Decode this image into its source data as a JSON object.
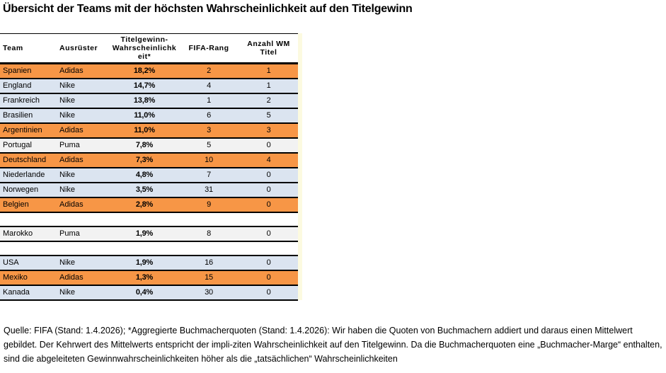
{
  "title": "Übersicht der Teams mit der höchsten Wahrscheinlichkeit auf den Titelgewinn",
  "table": {
    "columns": [
      "Team",
      "Ausrüster",
      "Titelgewinn-Wahrscheinlichkeit*",
      "FIFA-Rang",
      "Anzahl WM Titel"
    ],
    "rows": [
      {
        "team": "Spanien",
        "ausruester": "Adidas",
        "wahrscheinlichkeit": "18,2%",
        "fifa_rang": "2",
        "wm_titel": "1",
        "highlight": "orange"
      },
      {
        "team": "England",
        "ausruester": "Nike",
        "wahrscheinlichkeit": "14,7%",
        "fifa_rang": "4",
        "wm_titel": "1",
        "highlight": "blue"
      },
      {
        "team": "Frankreich",
        "ausruester": "Nike",
        "wahrscheinlichkeit": "13,8%",
        "fifa_rang": "1",
        "wm_titel": "2",
        "highlight": "blue"
      },
      {
        "team": "Brasilien",
        "ausruester": "Nike",
        "wahrscheinlichkeit": "11,0%",
        "fifa_rang": "6",
        "wm_titel": "5",
        "highlight": "blue"
      },
      {
        "team": "Argentinien",
        "ausruester": "Adidas",
        "wahrscheinlichkeit": "11,0%",
        "fifa_rang": "3",
        "wm_titel": "3",
        "highlight": "orange"
      },
      {
        "team": "Portugal",
        "ausruester": "Puma",
        "wahrscheinlichkeit": "7,8%",
        "fifa_rang": "5",
        "wm_titel": "0",
        "highlight": "gray"
      },
      {
        "team": "Deutschland",
        "ausruester": "Adidas",
        "wahrscheinlichkeit": "7,3%",
        "fifa_rang": "10",
        "wm_titel": "4",
        "highlight": "orange"
      },
      {
        "team": "Niederlande",
        "ausruester": "Nike",
        "wahrscheinlichkeit": "4,8%",
        "fifa_rang": "7",
        "wm_titel": "0",
        "highlight": "blue"
      },
      {
        "team": "Norwegen",
        "ausruester": "Nike",
        "wahrscheinlichkeit": "3,5%",
        "fifa_rang": "31",
        "wm_titel": "0",
        "highlight": "blue"
      },
      {
        "team": "Belgien",
        "ausruester": "Adidas",
        "wahrscheinlichkeit": "2,8%",
        "fifa_rang": "9",
        "wm_titel": "0",
        "highlight": "orange"
      },
      {
        "spacer": true
      },
      {
        "team": "Marokko",
        "ausruester": "Puma",
        "wahrscheinlichkeit": "1,9%",
        "fifa_rang": "8",
        "wm_titel": "0",
        "highlight": "gray"
      },
      {
        "spacer": true
      },
      {
        "team": "USA",
        "ausruester": "Nike",
        "wahrscheinlichkeit": "1,9%",
        "fifa_rang": "16",
        "wm_titel": "0",
        "highlight": "blue"
      },
      {
        "team": "Mexiko",
        "ausruester": "Adidas",
        "wahrscheinlichkeit": "1,3%",
        "fifa_rang": "15",
        "wm_titel": "0",
        "highlight": "orange"
      },
      {
        "team": "Kanada",
        "ausruester": "Nike",
        "wahrscheinlichkeit": "0,4%",
        "fifa_rang": "30",
        "wm_titel": "0",
        "highlight": "blue"
      }
    ]
  },
  "footnote": "Quelle: FIFA (Stand: 1.4.2026); *Aggregierte Buchmacherquoten (Stand: 1.4.2026): Wir haben die Quoten von Buchmachern addiert und daraus einen Mittelwert gebildet. Der Kehrwert des Mittelwerts entspricht der impli-ziten Wahrscheinlichkeit auf den Titelgewinn. Da die Buchmacherquoten eine „Buchmacher-Marge“ enthalten, sind die abgeleiteten Gewinnwahrscheinlichkeiten höher als die „tatsächlichen“ Wahrscheinlichkeiten",
  "colors": {
    "row_orange": "#F79646",
    "row_blue": "#DBE4F0",
    "row_gray": "#F2F2F2",
    "border": "#000000",
    "edge_strip": "#FCFAE0"
  },
  "chart_data": {
    "type": "table",
    "title": "Übersicht der Teams mit der höchsten Wahrscheinlichkeit auf den Titelgewinn",
    "columns": [
      "Team",
      "Ausrüster",
      "Titelgewinn-Wahrscheinlichkeit*",
      "FIFA-Rang",
      "Anzahl WM Titel"
    ],
    "rows": [
      [
        "Spanien",
        "Adidas",
        "18,2%",
        2,
        1
      ],
      [
        "England",
        "Nike",
        "14,7%",
        4,
        1
      ],
      [
        "Frankreich",
        "Nike",
        "13,8%",
        1,
        2
      ],
      [
        "Brasilien",
        "Nike",
        "11,0%",
        6,
        5
      ],
      [
        "Argentinien",
        "Adidas",
        "11,0%",
        3,
        3
      ],
      [
        "Portugal",
        "Puma",
        "7,8%",
        5,
        0
      ],
      [
        "Deutschland",
        "Adidas",
        "7,3%",
        10,
        4
      ],
      [
        "Niederlande",
        "Nike",
        "4,8%",
        7,
        0
      ],
      [
        "Norwegen",
        "Nike",
        "3,5%",
        31,
        0
      ],
      [
        "Belgien",
        "Adidas",
        "2,8%",
        9,
        0
      ],
      [
        "Marokko",
        "Puma",
        "1,9%",
        8,
        0
      ],
      [
        "USA",
        "Nike",
        "1,9%",
        16,
        0
      ],
      [
        "Mexiko",
        "Adidas",
        "1,3%",
        15,
        0
      ],
      [
        "Kanada",
        "Nike",
        "0,4%",
        30,
        0
      ]
    ],
    "notes": "Rows highlighted by Ausrüster: Adidas=orange, Nike=light blue, Puma=light gray; two empty spacer rows separate Belgien/Marokko and Marokko/USA"
  }
}
